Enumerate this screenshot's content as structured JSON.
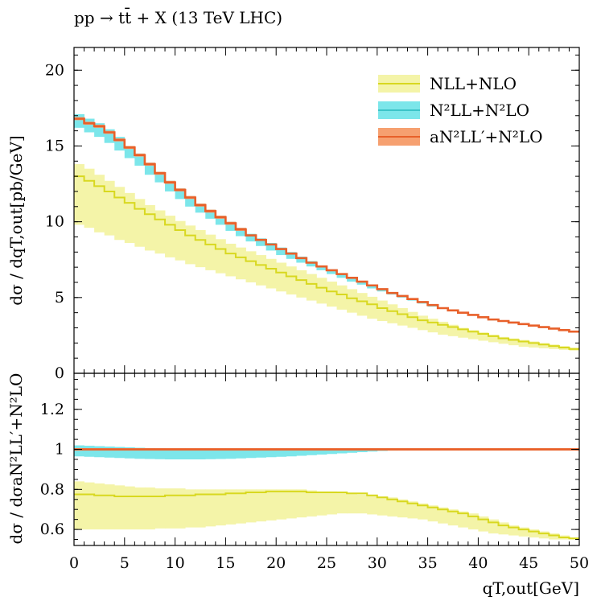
{
  "title": "pp → tt̄ + X (13 TeV LHC)",
  "colors": {
    "nll_line": "#d8d820",
    "nll_band": "#f4f4a8",
    "n2ll_line": "#3cc4c8",
    "n2ll_band": "#7ce6ea",
    "an2ll_line": "#e8602a",
    "an2ll_band": "#f6a070",
    "axis": "#000000"
  },
  "legend": [
    {
      "label": "NLL+NLO",
      "series": "nll"
    },
    {
      "label": "N²LL+N²LO",
      "series": "n2ll"
    },
    {
      "label": "aN²LL′+N²LO",
      "series": "an2ll"
    }
  ],
  "chart_data": [
    {
      "type": "line",
      "panel": "main",
      "xlabel": "",
      "ylabel": "dσ / dqT,out[pb/GeV]",
      "xlim": [
        0,
        50
      ],
      "ylim": [
        0,
        21.5
      ],
      "y_ticks": [
        0,
        5,
        10,
        15,
        20
      ],
      "bin_edges": [
        0,
        1,
        2,
        3,
        4,
        5,
        6,
        7,
        8,
        9,
        10,
        11,
        12,
        13,
        14,
        15,
        16,
        17,
        18,
        19,
        20,
        21,
        22,
        23,
        24,
        25,
        26,
        27,
        28,
        29,
        30,
        31,
        32,
        33,
        34,
        35,
        36,
        37,
        38,
        39,
        40,
        41,
        42,
        43,
        44,
        45,
        46,
        47,
        48,
        49,
        50
      ],
      "series": [
        {
          "name": "NLL+NLO",
          "key": "nll",
          "values": [
            13.0,
            12.7,
            12.35,
            12.0,
            11.6,
            11.25,
            10.85,
            10.5,
            10.15,
            9.8,
            9.45,
            9.1,
            8.8,
            8.5,
            8.2,
            7.9,
            7.65,
            7.4,
            7.15,
            6.9,
            6.65,
            6.4,
            6.15,
            5.9,
            5.65,
            5.4,
            5.2,
            4.95,
            4.75,
            4.55,
            4.3,
            4.1,
            3.9,
            3.7,
            3.5,
            3.35,
            3.2,
            3.05,
            2.9,
            2.75,
            2.6,
            2.45,
            2.3,
            2.2,
            2.1,
            2.0,
            1.9,
            1.8,
            1.7,
            1.6
          ],
          "band_low": [
            9.8,
            9.6,
            9.3,
            9.1,
            8.8,
            8.6,
            8.35,
            8.1,
            7.9,
            7.65,
            7.45,
            7.2,
            7.0,
            6.8,
            6.6,
            6.4,
            6.2,
            6.0,
            5.8,
            5.6,
            5.4,
            5.2,
            5.0,
            4.8,
            4.6,
            4.4,
            4.2,
            4.0,
            3.8,
            3.6,
            3.45,
            3.3,
            3.15,
            3.0,
            2.85,
            2.7,
            2.55,
            2.45,
            2.35,
            2.25,
            2.15,
            2.05,
            1.95,
            1.85,
            1.75,
            1.7,
            1.65,
            1.6,
            1.55,
            1.5
          ],
          "band_high": [
            13.8,
            13.5,
            13.1,
            12.7,
            12.3,
            11.9,
            11.5,
            11.1,
            10.75,
            10.4,
            10.05,
            9.75,
            9.45,
            9.15,
            8.85,
            8.55,
            8.3,
            8.05,
            7.8,
            7.55,
            7.3,
            7.05,
            6.8,
            6.55,
            6.3,
            6.05,
            5.8,
            5.55,
            5.3,
            5.05,
            4.8,
            4.55,
            4.3,
            4.05,
            3.8,
            3.6,
            3.4,
            3.2,
            3.0,
            2.85,
            2.7,
            2.55,
            2.4,
            2.3,
            2.2,
            2.1,
            2.0,
            1.9,
            1.8,
            1.7
          ]
        },
        {
          "name": "N²LL+N²LO",
          "key": "n2ll",
          "values": [
            16.8,
            16.5,
            16.3,
            15.9,
            15.4,
            14.9,
            14.4,
            13.8,
            13.2,
            12.6,
            12.1,
            11.6,
            11.1,
            10.7,
            10.3,
            9.9,
            9.5,
            9.1,
            8.8,
            8.5,
            8.2,
            7.9,
            7.6,
            7.3,
            7.05,
            6.8,
            6.55,
            6.3,
            6.05,
            5.8,
            5.55,
            5.3,
            5.1,
            4.9,
            4.7,
            4.5,
            4.3,
            4.15,
            4.0,
            3.85,
            3.7,
            3.55,
            3.45,
            3.35,
            3.25,
            3.15,
            3.05,
            2.95,
            2.85,
            2.75
          ],
          "band_low": [
            16.2,
            15.9,
            15.6,
            15.2,
            14.7,
            14.2,
            13.7,
            13.1,
            12.6,
            12.0,
            11.5,
            11.0,
            10.6,
            10.2,
            9.8,
            9.4,
            9.05,
            8.7,
            8.4,
            8.1,
            7.8,
            7.55,
            7.3,
            7.05,
            6.8,
            6.55,
            6.3,
            6.05,
            5.85,
            5.6,
            5.4,
            5.2,
            5.0,
            4.8,
            4.6,
            4.4,
            4.25,
            4.1,
            3.95,
            3.8,
            3.65,
            3.5,
            3.4,
            3.3,
            3.2,
            3.1,
            3.0,
            2.9,
            2.8,
            2.7
          ],
          "band_high": [
            17.1,
            16.8,
            16.5,
            16.1,
            15.6,
            15.0,
            14.5,
            13.9,
            13.3,
            12.7,
            12.2,
            11.7,
            11.2,
            10.8,
            10.4,
            10.0,
            9.6,
            9.2,
            8.9,
            8.6,
            8.3,
            8.0,
            7.7,
            7.4,
            7.1,
            6.85,
            6.6,
            6.35,
            6.1,
            5.85,
            5.6,
            5.35,
            5.15,
            4.95,
            4.75,
            4.55,
            4.35,
            4.2,
            4.05,
            3.9,
            3.75,
            3.6,
            3.5,
            3.4,
            3.3,
            3.2,
            3.1,
            3.0,
            2.9,
            2.8
          ]
        },
        {
          "name": "aN²LL′+N²LO",
          "key": "an2ll",
          "values": [
            16.8,
            16.5,
            16.3,
            15.9,
            15.4,
            14.9,
            14.4,
            13.8,
            13.2,
            12.6,
            12.1,
            11.6,
            11.1,
            10.7,
            10.3,
            9.9,
            9.5,
            9.1,
            8.8,
            8.5,
            8.2,
            7.9,
            7.6,
            7.3,
            7.05,
            6.8,
            6.55,
            6.3,
            6.05,
            5.8,
            5.55,
            5.3,
            5.1,
            4.9,
            4.7,
            4.5,
            4.3,
            4.15,
            4.0,
            3.85,
            3.7,
            3.55,
            3.45,
            3.35,
            3.25,
            3.15,
            3.05,
            2.95,
            2.85,
            2.75
          ],
          "band_low": [
            16.7,
            16.4,
            16.2,
            15.8,
            15.3,
            14.8,
            14.3,
            13.7,
            13.1,
            12.5,
            12.0,
            11.5,
            11.0,
            10.6,
            10.2,
            9.8,
            9.4,
            9.05,
            8.75,
            8.45,
            8.15,
            7.85,
            7.55,
            7.25,
            7.0,
            6.75,
            6.5,
            6.25,
            6.0,
            5.75,
            5.5,
            5.25,
            5.05,
            4.85,
            4.65,
            4.45,
            4.25,
            4.1,
            3.95,
            3.8,
            3.65,
            3.5,
            3.4,
            3.3,
            3.2,
            3.1,
            3.0,
            2.9,
            2.8,
            2.7
          ],
          "band_high": [
            16.9,
            16.6,
            16.4,
            16.0,
            15.5,
            15.0,
            14.5,
            13.9,
            13.3,
            12.7,
            12.2,
            11.7,
            11.2,
            10.8,
            10.4,
            10.0,
            9.6,
            9.15,
            8.85,
            8.55,
            8.25,
            7.95,
            7.65,
            7.35,
            7.1,
            6.85,
            6.6,
            6.35,
            6.1,
            5.85,
            5.6,
            5.35,
            5.15,
            4.95,
            4.75,
            4.55,
            4.35,
            4.2,
            4.05,
            3.9,
            3.75,
            3.6,
            3.5,
            3.4,
            3.3,
            3.2,
            3.1,
            3.0,
            2.9,
            2.8
          ]
        }
      ]
    },
    {
      "type": "line",
      "panel": "ratio",
      "xlabel": "qT,out[GeV]",
      "ylabel": "dσ / dσaN²LL′+N²LO",
      "xlim": [
        0,
        50
      ],
      "ylim": [
        0.52,
        1.38
      ],
      "x_ticks": [
        0,
        5,
        10,
        15,
        20,
        25,
        30,
        35,
        40,
        45,
        50
      ],
      "y_ticks": [
        0.6,
        0.8,
        1,
        1.2
      ],
      "y_tick_labels": [
        "0.6",
        "0.8",
        "1",
        "1.2"
      ],
      "bin_edges": [
        0,
        1,
        2,
        3,
        4,
        5,
        6,
        7,
        8,
        9,
        10,
        11,
        12,
        13,
        14,
        15,
        16,
        17,
        18,
        19,
        20,
        21,
        22,
        23,
        24,
        25,
        26,
        27,
        28,
        29,
        30,
        31,
        32,
        33,
        34,
        35,
        36,
        37,
        38,
        39,
        40,
        41,
        42,
        43,
        44,
        45,
        46,
        47,
        48,
        49,
        50
      ],
      "series": [
        {
          "name": "NLL+NLO",
          "key": "nll",
          "values": [
            0.775,
            0.775,
            0.77,
            0.77,
            0.765,
            0.765,
            0.765,
            0.765,
            0.765,
            0.77,
            0.77,
            0.77,
            0.775,
            0.775,
            0.775,
            0.78,
            0.78,
            0.785,
            0.785,
            0.79,
            0.79,
            0.79,
            0.79,
            0.785,
            0.785,
            0.785,
            0.785,
            0.78,
            0.78,
            0.77,
            0.76,
            0.75,
            0.74,
            0.73,
            0.72,
            0.71,
            0.7,
            0.69,
            0.68,
            0.665,
            0.65,
            0.635,
            0.62,
            0.61,
            0.6,
            0.59,
            0.58,
            0.57,
            0.56,
            0.555
          ],
          "band_low": [
            0.6,
            0.6,
            0.6,
            0.6,
            0.6,
            0.6,
            0.6,
            0.6,
            0.605,
            0.605,
            0.605,
            0.61,
            0.61,
            0.615,
            0.62,
            0.625,
            0.63,
            0.635,
            0.64,
            0.645,
            0.65,
            0.655,
            0.66,
            0.665,
            0.67,
            0.675,
            0.68,
            0.68,
            0.68,
            0.675,
            0.67,
            0.665,
            0.66,
            0.655,
            0.65,
            0.64,
            0.63,
            0.62,
            0.61,
            0.6,
            0.59,
            0.58,
            0.575,
            0.57,
            0.565,
            0.56,
            0.555,
            0.55,
            0.55,
            0.55
          ],
          "band_high": [
            0.84,
            0.835,
            0.83,
            0.825,
            0.82,
            0.815,
            0.81,
            0.81,
            0.805,
            0.805,
            0.805,
            0.8,
            0.8,
            0.8,
            0.8,
            0.8,
            0.8,
            0.8,
            0.8,
            0.8,
            0.8,
            0.8,
            0.8,
            0.795,
            0.79,
            0.79,
            0.785,
            0.78,
            0.775,
            0.77,
            0.765,
            0.76,
            0.75,
            0.74,
            0.73,
            0.72,
            0.71,
            0.7,
            0.69,
            0.68,
            0.665,
            0.65,
            0.635,
            0.62,
            0.61,
            0.6,
            0.59,
            0.58,
            0.57,
            0.56
          ]
        },
        {
          "name": "N²LL+N²LO",
          "key": "n2ll",
          "values": [
            1,
            1,
            1,
            1,
            1,
            1,
            1,
            1,
            1,
            1,
            1,
            1,
            1,
            1,
            1,
            1,
            1,
            1,
            1,
            1,
            1,
            1,
            1,
            1,
            1,
            1,
            1,
            1,
            1,
            1,
            1,
            1,
            1,
            1,
            1,
            1,
            1,
            1,
            1,
            1,
            1,
            1,
            1,
            1,
            1,
            1,
            1,
            1,
            1,
            1
          ],
          "band_low": [
            0.965,
            0.963,
            0.961,
            0.959,
            0.957,
            0.955,
            0.953,
            0.952,
            0.951,
            0.95,
            0.95,
            0.95,
            0.95,
            0.951,
            0.952,
            0.953,
            0.955,
            0.957,
            0.959,
            0.961,
            0.963,
            0.965,
            0.968,
            0.971,
            0.974,
            0.977,
            0.98,
            0.983,
            0.986,
            0.989,
            0.992,
            0.994,
            0.996,
            0.998,
            0.999,
            1.0,
            1.0,
            1.0,
            1.0,
            1.0,
            1.0,
            1.0,
            1.0,
            1.0,
            1.0,
            1.0,
            1.0,
            1.0,
            1.0,
            1.0
          ],
          "band_high": [
            1.02,
            1.018,
            1.016,
            1.014,
            1.012,
            1.01,
            1.008,
            1.006,
            1.005,
            1.004,
            1.003,
            1.003,
            1.003,
            1.003,
            1.003,
            1.003,
            1.003,
            1.003,
            1.003,
            1.003,
            1.003,
            1.003,
            1.003,
            1.003,
            1.003,
            1.003,
            1.003,
            1.003,
            1.003,
            1.003,
            1.003,
            1.003,
            1.003,
            1.003,
            1.003,
            1.003,
            1.003,
            1.003,
            1.003,
            1.003,
            1.003,
            1.003,
            1.003,
            1.003,
            1.003,
            1.003,
            1.003,
            1.003,
            1.003,
            1.003
          ]
        },
        {
          "name": "aN²LL′+N²LO",
          "key": "an2ll",
          "values": [
            1,
            1,
            1,
            1,
            1,
            1,
            1,
            1,
            1,
            1,
            1,
            1,
            1,
            1,
            1,
            1,
            1,
            1,
            1,
            1,
            1,
            1,
            1,
            1,
            1,
            1,
            1,
            1,
            1,
            1,
            1,
            1,
            1,
            1,
            1,
            1,
            1,
            1,
            1,
            1,
            1,
            1,
            1,
            1,
            1,
            1,
            1,
            1,
            1,
            1
          ],
          "band_low": [
            0.994,
            0.994,
            0.994,
            0.994,
            0.994,
            0.994,
            0.994,
            0.994,
            0.994,
            0.994,
            0.994,
            0.994,
            0.994,
            0.994,
            0.994,
            0.994,
            0.994,
            0.994,
            0.994,
            0.994,
            0.994,
            0.994,
            0.994,
            0.994,
            0.994,
            0.994,
            0.994,
            0.994,
            0.994,
            0.994,
            0.994,
            0.994,
            0.994,
            0.994,
            0.994,
            0.994,
            0.994,
            0.994,
            0.994,
            0.994,
            0.994,
            0.994,
            0.994,
            0.994,
            0.994,
            0.994,
            0.994,
            0.994,
            0.994,
            0.994
          ],
          "band_high": [
            1.006,
            1.006,
            1.006,
            1.006,
            1.006,
            1.006,
            1.006,
            1.006,
            1.006,
            1.006,
            1.006,
            1.006,
            1.006,
            1.006,
            1.006,
            1.006,
            1.006,
            1.006,
            1.006,
            1.006,
            1.006,
            1.006,
            1.006,
            1.006,
            1.006,
            1.006,
            1.006,
            1.006,
            1.006,
            1.006,
            1.006,
            1.006,
            1.006,
            1.006,
            1.006,
            1.006,
            1.006,
            1.006,
            1.006,
            1.006,
            1.006,
            1.006,
            1.006,
            1.006,
            1.006,
            1.006,
            1.006,
            1.006,
            1.006,
            1.006
          ]
        }
      ]
    }
  ]
}
